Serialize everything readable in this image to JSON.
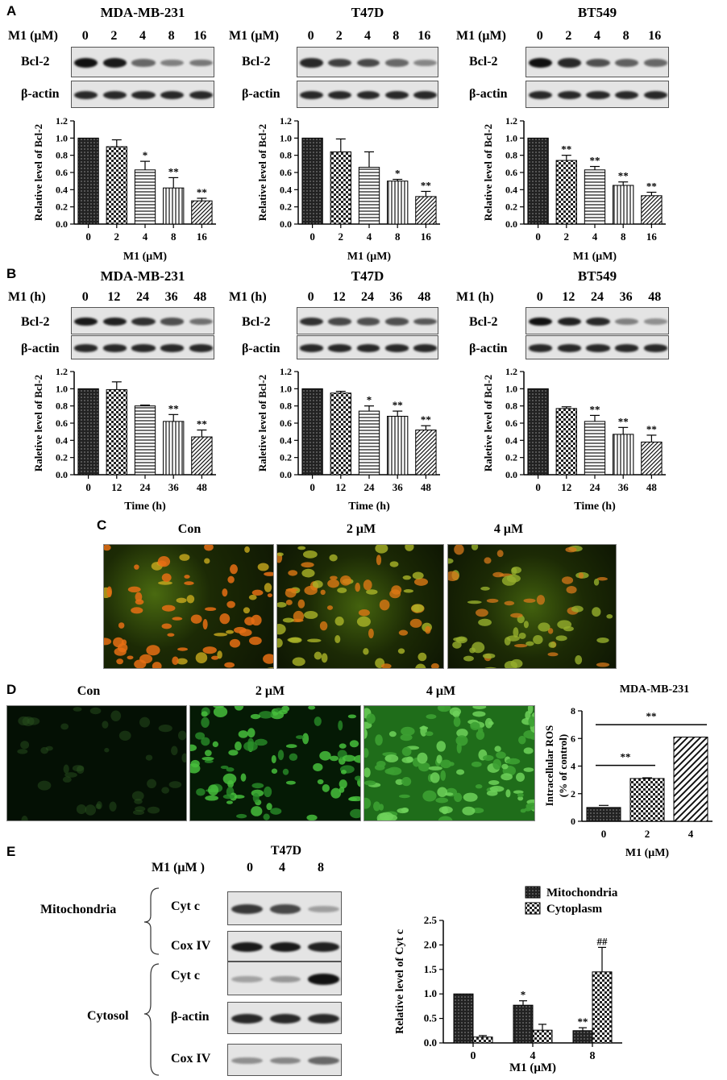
{
  "panels": {
    "A": "A",
    "B": "B",
    "C": "C",
    "D": "D",
    "E": "E"
  },
  "panel_A": {
    "row_label": "M1 (μM)",
    "lanes": [
      "0",
      "2",
      "4",
      "8",
      "16"
    ],
    "blot_labels": [
      "Bcl-2",
      "β-actin"
    ],
    "cells": [
      {
        "title": "MDA-MB-231",
        "band": [
          1.0,
          0.95,
          0.45,
          0.3,
          0.35
        ]
      },
      {
        "title": "T47D",
        "band": [
          0.85,
          0.7,
          0.65,
          0.45,
          0.25
        ]
      },
      {
        "title": "BT549",
        "band": [
          1.0,
          0.85,
          0.6,
          0.5,
          0.45
        ]
      }
    ]
  },
  "panel_B": {
    "row_label": "M1 (h)",
    "lanes": [
      "0",
      "12",
      "24",
      "36",
      "48"
    ],
    "blot_labels": [
      "Bcl-2",
      "β-actin"
    ],
    "cells": [
      {
        "title": "MDA-MB-231",
        "band": [
          0.95,
          0.9,
          0.8,
          0.6,
          0.4
        ]
      },
      {
        "title": "T47D",
        "band": [
          0.8,
          0.65,
          0.6,
          0.6,
          0.55
        ]
      },
      {
        "title": "BT549",
        "band": [
          1.0,
          0.9,
          0.85,
          0.3,
          0.2
        ]
      }
    ]
  },
  "panel_C": {
    "labels": [
      "Con",
      "2 μM",
      "4 μM"
    ]
  },
  "panel_D": {
    "labels": [
      "Con",
      "2 μM",
      "4 μM"
    ]
  },
  "panel_E": {
    "title": "T47D",
    "row_label": "M1 (μM )",
    "lanes": [
      "0",
      "4",
      "8"
    ],
    "fraction_labels": [
      "Mitochondria",
      "Cytosol"
    ],
    "blot_labels": [
      "Cyt c",
      "Cox IV",
      "Cyt c",
      "β-actin",
      "Cox IV"
    ]
  },
  "chart_data": [
    {
      "type": "bar",
      "panel": "A",
      "categories": [
        "0",
        "2",
        "4",
        "8",
        "16"
      ],
      "values": [
        1.0,
        0.9,
        0.63,
        0.42,
        0.27
      ],
      "errors": [
        0,
        0.08,
        0.1,
        0.12,
        0.03
      ],
      "annotations": [
        "",
        "",
        "*",
        "**",
        "**"
      ],
      "xlabel": "M1 (μM)",
      "ylabel": "Relative level of Bcl-2",
      "ylim": [
        0,
        1.2
      ],
      "yticks": [
        "0.0",
        "0.2",
        "0.4",
        "0.6",
        "0.8",
        "1.0",
        "1.2"
      ]
    },
    {
      "type": "bar",
      "panel": "A",
      "categories": [
        "0",
        "2",
        "4",
        "8",
        "16"
      ],
      "values": [
        1.0,
        0.84,
        0.66,
        0.5,
        0.32
      ],
      "errors": [
        0,
        0.15,
        0.18,
        0.02,
        0.06
      ],
      "annotations": [
        "",
        "",
        "",
        "*",
        "**"
      ],
      "xlabel": "M1 (μM)",
      "ylabel": "Relative level of Bcl-2",
      "ylim": [
        0,
        1.2
      ],
      "yticks": [
        "0.0",
        "0.2",
        "0.4",
        "0.6",
        "0.8",
        "1.0",
        "1.2"
      ]
    },
    {
      "type": "bar",
      "panel": "A",
      "categories": [
        "0",
        "2",
        "4",
        "8",
        "16"
      ],
      "values": [
        1.0,
        0.74,
        0.63,
        0.45,
        0.33
      ],
      "errors": [
        0,
        0.06,
        0.04,
        0.04,
        0.04
      ],
      "annotations": [
        "",
        "**",
        "**",
        "**",
        "**"
      ],
      "xlabel": "M1 (μM)",
      "ylabel": "Relative level of Bcl-2",
      "ylim": [
        0,
        1.2
      ],
      "yticks": [
        "0.0",
        "0.2",
        "0.4",
        "0.6",
        "0.8",
        "1.0",
        "1.2"
      ]
    },
    {
      "type": "bar",
      "panel": "B",
      "categories": [
        "0",
        "12",
        "24",
        "36",
        "48"
      ],
      "values": [
        1.0,
        0.99,
        0.8,
        0.62,
        0.44
      ],
      "errors": [
        0,
        0.09,
        0.01,
        0.08,
        0.08
      ],
      "annotations": [
        "",
        "",
        "",
        "**",
        "**"
      ],
      "xlabel": "Time (h)",
      "ylabel": "Raletive level of Bcl-2",
      "ylim": [
        0,
        1.2
      ],
      "yticks": [
        "0.0",
        "0.2",
        "0.4",
        "0.6",
        "0.8",
        "1.0",
        "1.2"
      ]
    },
    {
      "type": "bar",
      "panel": "B",
      "categories": [
        "0",
        "12",
        "24",
        "36",
        "48"
      ],
      "values": [
        1.0,
        0.95,
        0.74,
        0.68,
        0.52
      ],
      "errors": [
        0,
        0.02,
        0.06,
        0.06,
        0.05
      ],
      "annotations": [
        "",
        "",
        "*",
        "**",
        "**"
      ],
      "xlabel": "Time (h)",
      "ylabel": "Raletive level of Bcl-2",
      "ylim": [
        0,
        1.2
      ],
      "yticks": [
        "0.0",
        "0.2",
        "0.4",
        "0.6",
        "0.8",
        "1.0",
        "1.2"
      ]
    },
    {
      "type": "bar",
      "panel": "B",
      "categories": [
        "0",
        "12",
        "24",
        "36",
        "48"
      ],
      "values": [
        1.0,
        0.77,
        0.62,
        0.47,
        0.38
      ],
      "errors": [
        0,
        0.02,
        0.07,
        0.08,
        0.08
      ],
      "annotations": [
        "",
        "",
        "**",
        "**",
        "**"
      ],
      "xlabel": "Time (h)",
      "ylabel": "Raletive level of Bcl-2",
      "ylim": [
        0,
        1.2
      ],
      "yticks": [
        "0.0",
        "0.2",
        "0.4",
        "0.6",
        "0.8",
        "1.0",
        "1.2"
      ]
    },
    {
      "type": "bar",
      "panel": "D",
      "title": "MDA-MB-231",
      "categories": [
        "0",
        "2",
        "4"
      ],
      "values": [
        1.0,
        3.1,
        6.1
      ],
      "errors": [
        0.15,
        0.05,
        0.0
      ],
      "comparisons": [
        {
          "label": "**",
          "from": "0",
          "to": "2"
        },
        {
          "label": "**",
          "from": "0",
          "to": "4"
        }
      ],
      "xlabel": "M1 (μM)",
      "ylabel": "Intracellular ROS\n(% of control)",
      "ylim": [
        0,
        8
      ],
      "yticks": [
        "0",
        "2",
        "4",
        "6",
        "8"
      ]
    },
    {
      "type": "bar",
      "panel": "E",
      "categories": [
        "0",
        "4",
        "8"
      ],
      "series": [
        {
          "name": "Mitochondria",
          "values": [
            1.0,
            0.77,
            0.25
          ],
          "errors": [
            0,
            0.09,
            0.06
          ],
          "annotations": [
            "",
            "*",
            "**"
          ]
        },
        {
          "name": "Cytoplasm",
          "values": [
            0.12,
            0.26,
            1.45
          ],
          "errors": [
            0.03,
            0.12,
            0.5
          ],
          "annotations": [
            "",
            "",
            "##"
          ]
        }
      ],
      "xlabel": "M1 (μM)",
      "ylabel": "Relative level of Cyt c",
      "ylim": [
        0,
        2.5
      ],
      "yticks": [
        "0.0",
        "0.5",
        "1.0",
        "1.5",
        "2.0",
        "2.5"
      ],
      "legend": "top"
    }
  ]
}
